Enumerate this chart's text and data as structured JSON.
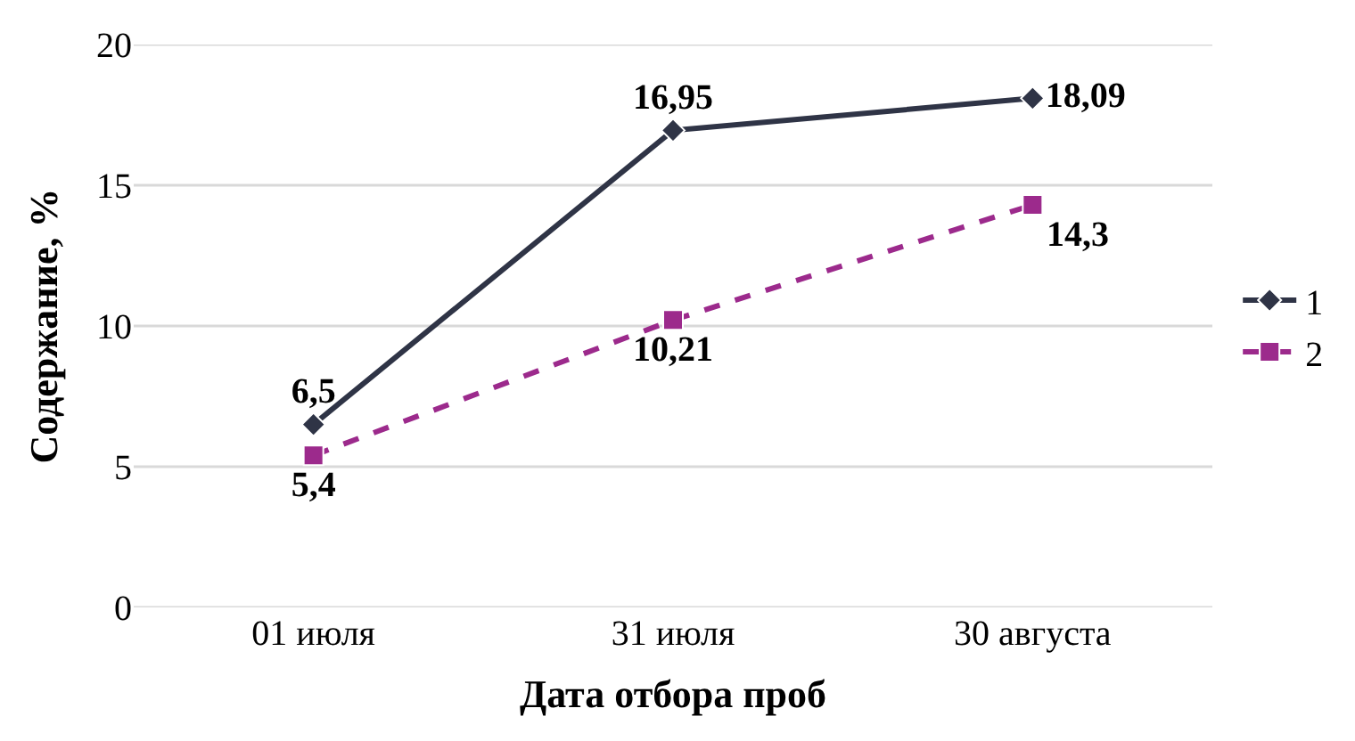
{
  "chart_data": {
    "type": "line",
    "xlabel": "Дата отбора проб",
    "ylabel": "Содержание, %",
    "categories": [
      "01 июля",
      "31 июля",
      "30 августа"
    ],
    "series": [
      {
        "name": "1",
        "color": "#2f3446",
        "values": [
          6.5,
          16.95,
          18.09
        ],
        "value_labels": [
          "6,5",
          "16,95",
          "18,09"
        ],
        "marker": "diamond",
        "line_style": "solid"
      },
      {
        "name": "2",
        "color": "#9c2a8c",
        "values": [
          5.4,
          10.21,
          14.3
        ],
        "value_labels": [
          "5,4",
          "10,21",
          "14,3"
        ],
        "marker": "square",
        "line_style": "dashed"
      }
    ],
    "ylim": [
      0,
      20
    ],
    "yticks": [
      0,
      5,
      10,
      15,
      20
    ],
    "grid": "y",
    "legend": "right"
  }
}
